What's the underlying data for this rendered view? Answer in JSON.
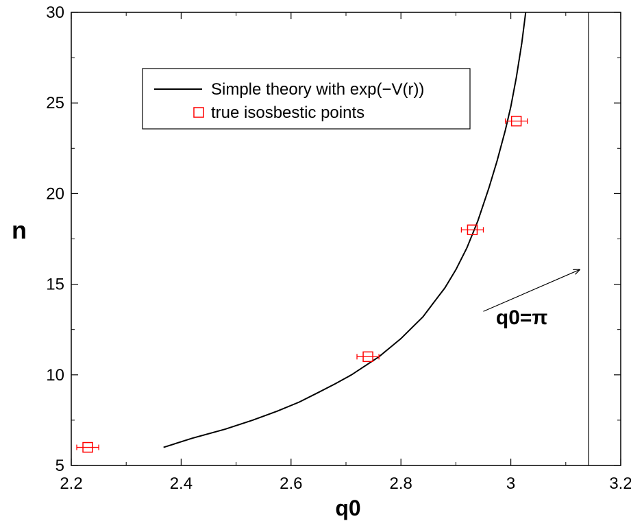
{
  "chart_data": {
    "type": "line",
    "title": "",
    "xlabel": "q0",
    "ylabel": "n",
    "xlim": [
      2.2,
      3.2
    ],
    "ylim": [
      5,
      30
    ],
    "x_ticks": [
      2.2,
      2.4,
      2.6,
      2.8,
      3.0,
      3.2
    ],
    "x_tick_labels": [
      "2.2",
      "2.4",
      "2.6",
      "2.8",
      "3",
      "3.2"
    ],
    "y_ticks": [
      5,
      10,
      15,
      20,
      25,
      30
    ],
    "y_tick_labels": [
      "5",
      "10",
      "15",
      "20",
      "25",
      "30"
    ],
    "grid": false,
    "legend_position": "top-left",
    "series": [
      {
        "name": "Simple theory with exp(−V(r))",
        "kind": "line",
        "color": "#000000",
        "x": [
          2.368,
          2.42,
          2.48,
          2.53,
          2.575,
          2.615,
          2.648,
          2.68,
          2.71,
          2.735,
          2.76,
          2.78,
          2.8,
          2.82,
          2.84,
          2.86,
          2.88,
          2.9,
          2.92,
          2.94,
          2.96,
          2.975,
          2.99,
          3.0,
          3.01,
          3.02,
          3.027
        ],
        "y": [
          6.0,
          6.5,
          7.0,
          7.5,
          8.0,
          8.5,
          9.0,
          9.5,
          10.0,
          10.5,
          11.0,
          11.5,
          12.0,
          12.6,
          13.2,
          14.0,
          14.8,
          15.8,
          17.0,
          18.5,
          20.3,
          21.8,
          23.5,
          24.8,
          26.4,
          28.3,
          30.0
        ]
      },
      {
        "name": "true isosbestic points",
        "kind": "scatter",
        "marker": "square",
        "color": "#ff0000",
        "x": [
          2.23,
          2.74,
          2.93,
          3.01
        ],
        "y": [
          6,
          11,
          18,
          24
        ],
        "xerr": [
          0.02,
          0.02,
          0.02,
          0.02
        ]
      }
    ],
    "reference_line": {
      "x": 3.1416,
      "color": "#000000"
    },
    "annotation": {
      "text": "q0=π",
      "text_at": [
        3.02,
        12.8
      ],
      "arrow_from": [
        2.95,
        13.5
      ],
      "arrow_to": [
        3.125,
        15.8
      ]
    }
  }
}
